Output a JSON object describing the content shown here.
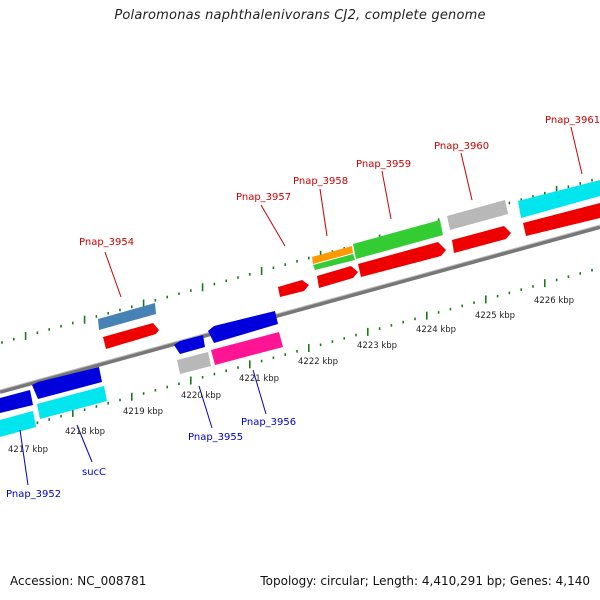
{
  "title": "Polaromonas naphthalenivorans CJ2, complete genome",
  "footer": {
    "accession": "Accession: NC_008781",
    "topology": "Topology: circular; Length: 4,410,291 bp; Genes: 4,140"
  },
  "colors": {
    "backbone": "#888888",
    "tick": "#1a7a1a",
    "label_top": "#cc0000",
    "label_bottom": "#0000cc",
    "text": "#222222"
  },
  "kbp_labels": [
    "4217 kbp",
    "4218 kbp",
    "4219 kbp",
    "4220 kbp",
    "4221 kbp",
    "4222 kbp",
    "4223 kbp",
    "4224 kbp",
    "4225 kbp",
    "4226 kbp"
  ],
  "gene_labels_top": [
    "Pnap_3954",
    "Pnap_3957",
    "Pnap_3958",
    "Pnap_3959",
    "Pnap_3960",
    "Pnap_3961"
  ],
  "gene_labels_bottom": [
    "Pnap_3952",
    "sucC",
    "Pnap_3955",
    "Pnap_3956"
  ]
}
